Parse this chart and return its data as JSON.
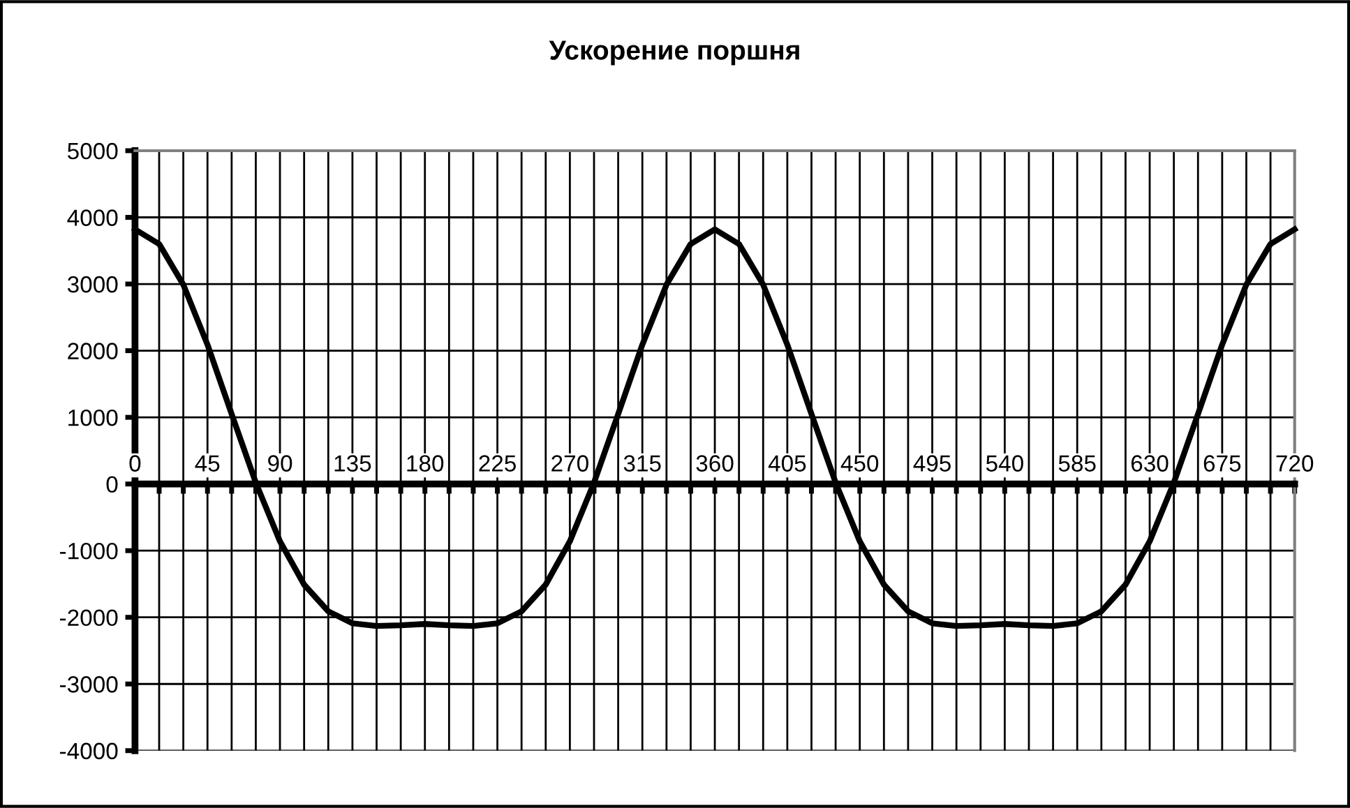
{
  "chart_data": {
    "type": "line",
    "title": "Ускорение поршня",
    "x": [
      0,
      15,
      30,
      45,
      60,
      75,
      90,
      105,
      120,
      135,
      150,
      165,
      180,
      195,
      210,
      225,
      240,
      255,
      270,
      285,
      300,
      315,
      330,
      345,
      360,
      375,
      390,
      405,
      420,
      435,
      450,
      465,
      480,
      495,
      510,
      525,
      540,
      555,
      570,
      585,
      600,
      615,
      630,
      645,
      660,
      675,
      690,
      705,
      720
    ],
    "series": [
      {
        "color": "#000000",
        "values": [
          3820,
          3600,
          2990,
          2090,
          1050,
          20,
          -860,
          -1510,
          -1910,
          -2090,
          -2130,
          -2120,
          -2100,
          -2120,
          -2130,
          -2090,
          -1910,
          -1510,
          -860,
          20,
          1050,
          2090,
          2990,
          3600,
          3820,
          3600,
          2990,
          2090,
          1050,
          20,
          -860,
          -1510,
          -1910,
          -2090,
          -2130,
          -2120,
          -2100,
          -2120,
          -2130,
          -2090,
          -1910,
          -1510,
          -860,
          20,
          1050,
          2090,
          2990,
          3600,
          3820
        ]
      }
    ],
    "xlim": [
      0,
      720
    ],
    "ylim": [
      -4000,
      5000
    ],
    "xticks": [
      0,
      {
        "value": 15,
        "label": null
      },
      {
        "value": 30,
        "label": null
      },
      45,
      {
        "value": 60,
        "label": null
      },
      {
        "value": 75,
        "label": null
      },
      90,
      {
        "value": 105,
        "label": null
      },
      {
        "value": 120,
        "label": null
      },
      135,
      {
        "value": 150,
        "label": null
      },
      {
        "value": 165,
        "label": null
      },
      180,
      {
        "value": 195,
        "label": null
      },
      {
        "value": 210,
        "label": null
      },
      225,
      {
        "value": 240,
        "label": null
      },
      {
        "value": 255,
        "label": null
      },
      270,
      {
        "value": 285,
        "label": null
      },
      {
        "value": 300,
        "label": null
      },
      315,
      {
        "value": 330,
        "label": null
      },
      {
        "value": 345,
        "label": null
      },
      360,
      {
        "value": 375,
        "label": null
      },
      {
        "value": 390,
        "label": null
      },
      405,
      {
        "value": 420,
        "label": null
      },
      {
        "value": 435,
        "label": null
      },
      450,
      {
        "value": 465,
        "label": null
      },
      {
        "value": 480,
        "label": null
      },
      495,
      {
        "value": 510,
        "label": null
      },
      {
        "value": 525,
        "label": null
      },
      540,
      {
        "value": 555,
        "label": null
      },
      {
        "value": 570,
        "label": null
      },
      585,
      {
        "value": 600,
        "label": null
      },
      {
        "value": 615,
        "label": null
      },
      630,
      {
        "value": 645,
        "label": null
      },
      {
        "value": 660,
        "label": null
      },
      675,
      {
        "value": 690,
        "label": null
      },
      {
        "value": 705,
        "label": null
      },
      720
    ],
    "yticks": [
      -4000,
      -3000,
      -2000,
      -1000,
      0,
      1000,
      2000,
      3000,
      4000,
      5000
    ],
    "grid": true,
    "legend": false,
    "marker": "none",
    "line_style": "solid"
  }
}
